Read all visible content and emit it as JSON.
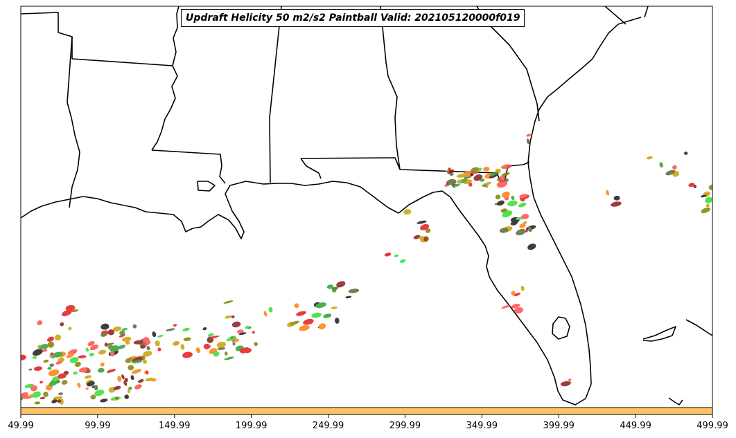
{
  "title": "Updraft Helicity 50 m2/s2 Paintball Valid: 202105120000f019",
  "colorbar_color": "#ffc266",
  "x_axis": {
    "ticks": [
      "49.99",
      "99.99",
      "149.99",
      "199.99",
      "249.99",
      "299.99",
      "349.99",
      "399.99",
      "449.99",
      "499.99"
    ],
    "range": [
      49.99,
      499.99
    ]
  },
  "member_colors": [
    "#e41a1a",
    "#ff7f0e",
    "#2ca02c",
    "#33dd33",
    "#8b1a1a",
    "#808000",
    "#c8a000",
    "#ff4d4d",
    "#1a1a1a",
    "#556b2f"
  ]
}
